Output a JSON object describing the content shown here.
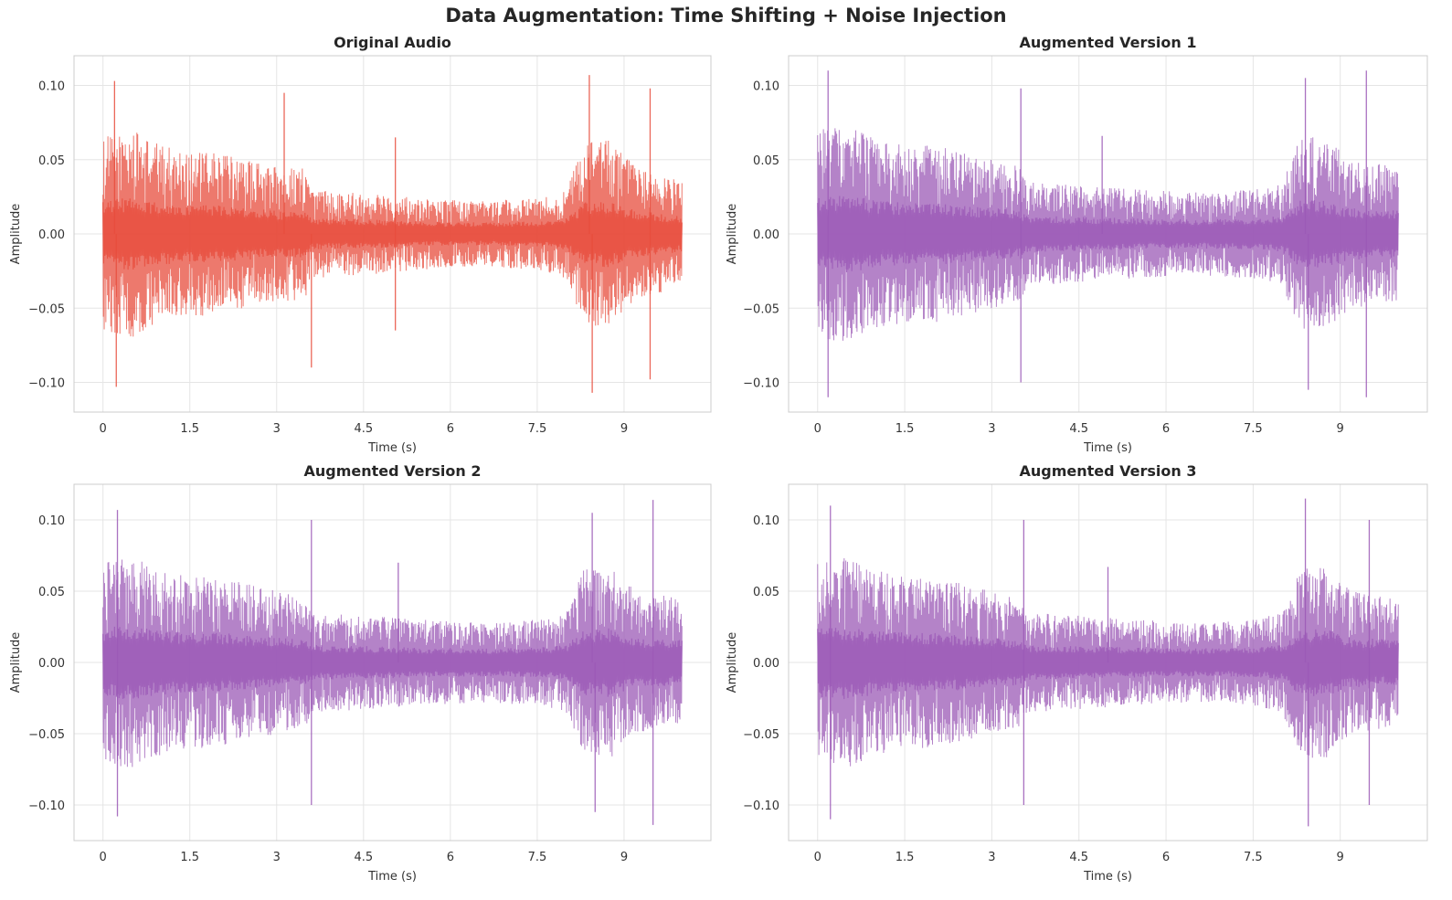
{
  "title": "Data Augmentation: Time Shifting + Noise Injection",
  "colors": {
    "original": "#e74c3c",
    "augmented": "#9b59b6",
    "grid": "#e5e5e5",
    "frame": "#cccccc"
  },
  "chart_data": [
    {
      "type": "line",
      "title": "Original Audio",
      "xlabel": "Time (s)",
      "ylabel": "Amplitude",
      "xlim": [
        -0.5,
        10.5
      ],
      "ylim": [
        -0.12,
        0.12
      ],
      "xticks": [
        0,
        1.5,
        3,
        4.5,
        6,
        7.5,
        9
      ],
      "xtick_labels": [
        "0",
        "1.5",
        "3",
        "4.5",
        "6",
        "7.5",
        "9"
      ],
      "yticks": [
        -0.1,
        -0.05,
        0.0,
        0.05,
        0.1
      ],
      "ytick_labels": [
        "−0.10",
        "−0.05",
        "0.00",
        "0.05",
        "0.10"
      ],
      "grid": true,
      "color": "#e74c3c",
      "duration": 10.0,
      "envelope": [
        {
          "t": 0.0,
          "a": 0.065
        },
        {
          "t": 0.5,
          "a": 0.07
        },
        {
          "t": 1.0,
          "a": 0.06
        },
        {
          "t": 1.5,
          "a": 0.055
        },
        {
          "t": 2.0,
          "a": 0.055
        },
        {
          "t": 2.5,
          "a": 0.05
        },
        {
          "t": 3.0,
          "a": 0.045
        },
        {
          "t": 3.5,
          "a": 0.045
        },
        {
          "t": 3.6,
          "a": 0.03
        },
        {
          "t": 4.5,
          "a": 0.028
        },
        {
          "t": 5.5,
          "a": 0.024
        },
        {
          "t": 6.5,
          "a": 0.022
        },
        {
          "t": 7.5,
          "a": 0.024
        },
        {
          "t": 8.0,
          "a": 0.03
        },
        {
          "t": 8.3,
          "a": 0.06
        },
        {
          "t": 8.7,
          "a": 0.065
        },
        {
          "t": 9.2,
          "a": 0.045
        },
        {
          "t": 10.0,
          "a": 0.035
        }
      ],
      "peaks": [
        {
          "t": 0.2,
          "a": 0.103
        },
        {
          "t": 0.23,
          "a": -0.103
        },
        {
          "t": 3.13,
          "a": 0.095
        },
        {
          "t": 3.6,
          "a": -0.09
        },
        {
          "t": 5.05,
          "a": 0.065
        },
        {
          "t": 5.05,
          "a": -0.065
        },
        {
          "t": 8.4,
          "a": 0.107
        },
        {
          "t": 8.45,
          "a": -0.107
        },
        {
          "t": 9.45,
          "a": 0.098
        },
        {
          "t": 9.45,
          "a": -0.098
        }
      ]
    },
    {
      "type": "line",
      "title": "Augmented Version 1",
      "xlabel": "Time (s)",
      "ylabel": "Amplitude",
      "xlim": [
        -0.5,
        10.5
      ],
      "ylim": [
        -0.12,
        0.12
      ],
      "xticks": [
        0,
        1.5,
        3,
        4.5,
        6,
        7.5,
        9
      ],
      "xtick_labels": [
        "0",
        "1.5",
        "3",
        "4.5",
        "6",
        "7.5",
        "9"
      ],
      "yticks": [
        -0.1,
        -0.05,
        0.0,
        0.05,
        0.1
      ],
      "ytick_labels": [
        "−0.10",
        "−0.05",
        "0.00",
        "0.05",
        "0.10"
      ],
      "grid": true,
      "color": "#9b59b6",
      "duration": 10.0,
      "envelope": [
        {
          "t": 0.0,
          "a": 0.07
        },
        {
          "t": 0.5,
          "a": 0.075
        },
        {
          "t": 1.0,
          "a": 0.065
        },
        {
          "t": 1.5,
          "a": 0.06
        },
        {
          "t": 2.0,
          "a": 0.06
        },
        {
          "t": 2.5,
          "a": 0.055
        },
        {
          "t": 3.0,
          "a": 0.05
        },
        {
          "t": 3.5,
          "a": 0.045
        },
        {
          "t": 3.6,
          "a": 0.035
        },
        {
          "t": 4.5,
          "a": 0.033
        },
        {
          "t": 5.5,
          "a": 0.03
        },
        {
          "t": 6.5,
          "a": 0.028
        },
        {
          "t": 7.5,
          "a": 0.03
        },
        {
          "t": 8.0,
          "a": 0.035
        },
        {
          "t": 8.3,
          "a": 0.065
        },
        {
          "t": 8.7,
          "a": 0.065
        },
        {
          "t": 9.2,
          "a": 0.05
        },
        {
          "t": 10.0,
          "a": 0.045
        }
      ],
      "peaks": [
        {
          "t": 0.18,
          "a": 0.11
        },
        {
          "t": 0.18,
          "a": -0.11
        },
        {
          "t": 3.5,
          "a": 0.098
        },
        {
          "t": 3.5,
          "a": -0.1
        },
        {
          "t": 4.9,
          "a": 0.066
        },
        {
          "t": 8.4,
          "a": 0.105
        },
        {
          "t": 8.45,
          "a": -0.105
        },
        {
          "t": 9.45,
          "a": 0.11
        },
        {
          "t": 9.45,
          "a": -0.11
        }
      ]
    },
    {
      "type": "line",
      "title": "Augmented Version 2",
      "xlabel": "Time (s)",
      "ylabel": "Amplitude",
      "xlim": [
        -0.5,
        10.5
      ],
      "ylim": [
        -0.125,
        0.125
      ],
      "xticks": [
        0,
        1.5,
        3,
        4.5,
        6,
        7.5,
        9
      ],
      "xtick_labels": [
        "0",
        "1.5",
        "3",
        "4.5",
        "6",
        "7.5",
        "9"
      ],
      "yticks": [
        -0.1,
        -0.05,
        0.0,
        0.05,
        0.1
      ],
      "ytick_labels": [
        "−0.10",
        "−0.05",
        "0.00",
        "0.05",
        "0.10"
      ],
      "grid": true,
      "color": "#9b59b6",
      "duration": 10.0,
      "envelope": [
        {
          "t": 0.0,
          "a": 0.07
        },
        {
          "t": 0.5,
          "a": 0.075
        },
        {
          "t": 1.0,
          "a": 0.065
        },
        {
          "t": 1.5,
          "a": 0.06
        },
        {
          "t": 2.0,
          "a": 0.06
        },
        {
          "t": 2.5,
          "a": 0.055
        },
        {
          "t": 3.0,
          "a": 0.05
        },
        {
          "t": 3.5,
          "a": 0.045
        },
        {
          "t": 3.6,
          "a": 0.035
        },
        {
          "t": 4.5,
          "a": 0.033
        },
        {
          "t": 5.5,
          "a": 0.03
        },
        {
          "t": 6.5,
          "a": 0.028
        },
        {
          "t": 7.5,
          "a": 0.03
        },
        {
          "t": 8.0,
          "a": 0.035
        },
        {
          "t": 8.3,
          "a": 0.065
        },
        {
          "t": 8.7,
          "a": 0.07
        },
        {
          "t": 9.2,
          "a": 0.05
        },
        {
          "t": 10.0,
          "a": 0.045
        }
      ],
      "peaks": [
        {
          "t": 0.25,
          "a": 0.107
        },
        {
          "t": 0.25,
          "a": -0.108
        },
        {
          "t": 3.6,
          "a": 0.1
        },
        {
          "t": 3.6,
          "a": -0.1
        },
        {
          "t": 5.1,
          "a": 0.07
        },
        {
          "t": 8.45,
          "a": 0.105
        },
        {
          "t": 8.5,
          "a": -0.105
        },
        {
          "t": 9.5,
          "a": 0.114
        },
        {
          "t": 9.5,
          "a": -0.114
        }
      ]
    },
    {
      "type": "line",
      "title": "Augmented Version 3",
      "xlabel": "Time (s)",
      "ylabel": "Amplitude",
      "xlim": [
        -0.5,
        10.5
      ],
      "ylim": [
        -0.125,
        0.125
      ],
      "xticks": [
        0,
        1.5,
        3,
        4.5,
        6,
        7.5,
        9
      ],
      "xtick_labels": [
        "0",
        "1.5",
        "3",
        "4.5",
        "6",
        "7.5",
        "9"
      ],
      "yticks": [
        -0.1,
        -0.05,
        0.0,
        0.05,
        0.1
      ],
      "ytick_labels": [
        "−0.10",
        "−0.05",
        "0.00",
        "0.05",
        "0.10"
      ],
      "grid": true,
      "color": "#9b59b6",
      "duration": 10.0,
      "envelope": [
        {
          "t": 0.0,
          "a": 0.07
        },
        {
          "t": 0.5,
          "a": 0.075
        },
        {
          "t": 1.0,
          "a": 0.065
        },
        {
          "t": 1.5,
          "a": 0.06
        },
        {
          "t": 2.0,
          "a": 0.06
        },
        {
          "t": 2.5,
          "a": 0.055
        },
        {
          "t": 3.0,
          "a": 0.05
        },
        {
          "t": 3.5,
          "a": 0.045
        },
        {
          "t": 3.6,
          "a": 0.035
        },
        {
          "t": 4.5,
          "a": 0.033
        },
        {
          "t": 5.5,
          "a": 0.03
        },
        {
          "t": 6.5,
          "a": 0.028
        },
        {
          "t": 7.5,
          "a": 0.03
        },
        {
          "t": 8.0,
          "a": 0.035
        },
        {
          "t": 8.3,
          "a": 0.065
        },
        {
          "t": 8.7,
          "a": 0.07
        },
        {
          "t": 9.2,
          "a": 0.05
        },
        {
          "t": 10.0,
          "a": 0.045
        }
      ],
      "peaks": [
        {
          "t": 0.22,
          "a": 0.11
        },
        {
          "t": 0.22,
          "a": -0.11
        },
        {
          "t": 3.55,
          "a": 0.1
        },
        {
          "t": 3.55,
          "a": -0.1
        },
        {
          "t": 5.0,
          "a": 0.067
        },
        {
          "t": 8.4,
          "a": 0.115
        },
        {
          "t": 8.45,
          "a": -0.115
        },
        {
          "t": 9.5,
          "a": 0.1
        },
        {
          "t": 9.5,
          "a": -0.1
        }
      ]
    }
  ]
}
